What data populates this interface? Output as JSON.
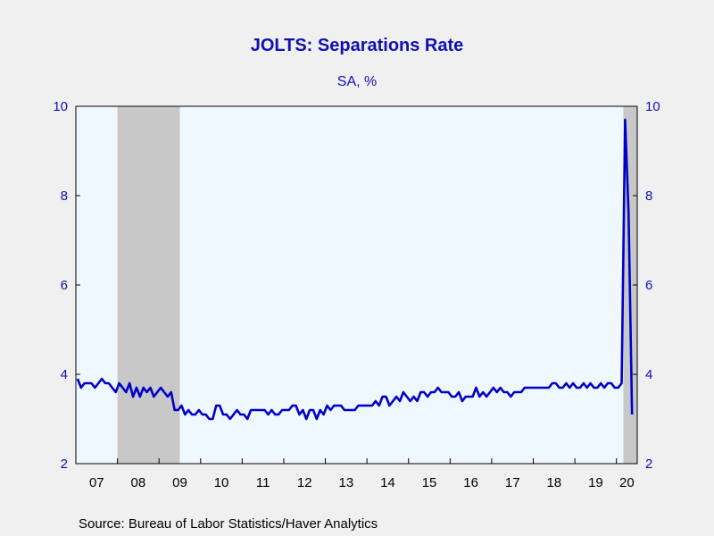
{
  "chart_data": {
    "type": "line",
    "title": "JOLTS: Separations Rate",
    "subtitle": "SA, %",
    "source": "Source:  Bureau of Labor Statistics/Haver Analytics",
    "ylim": [
      2,
      10
    ],
    "yticks": [
      2,
      4,
      6,
      8,
      10
    ],
    "x_start": "2007-01",
    "x_end": "2020-06",
    "x_tick_labels": [
      "07",
      "08",
      "09",
      "10",
      "11",
      "12",
      "13",
      "14",
      "15",
      "16",
      "17",
      "18",
      "19",
      "20"
    ],
    "recessions": [
      [
        "2008-01",
        "2009-06"
      ],
      [
        "2020-03",
        "2020-06"
      ]
    ],
    "colors": {
      "line": "#0000c8",
      "text": "#1010b0",
      "plot_bg": "#f0f8ff",
      "recession": "#c8c8c8",
      "page_bg": "#f0f0f0"
    },
    "grid": false,
    "series": [
      {
        "start": "2007-01",
        "values": [
          3.9,
          3.7,
          3.8,
          3.8,
          3.8,
          3.7,
          3.8,
          3.9,
          3.8,
          3.8,
          3.7,
          3.6,
          3.8,
          3.7,
          3.6,
          3.8,
          3.5,
          3.7,
          3.5,
          3.7,
          3.6,
          3.7,
          3.5,
          3.6,
          3.7,
          3.6,
          3.5,
          3.6,
          3.2,
          3.2,
          3.3,
          3.1,
          3.2,
          3.1,
          3.1,
          3.2,
          3.1,
          3.1,
          3.0,
          3.0,
          3.3,
          3.3,
          3.1,
          3.1,
          3.0,
          3.1,
          3.2,
          3.1,
          3.1,
          3.0,
          3.2,
          3.2,
          3.2,
          3.2,
          3.2,
          3.1,
          3.2,
          3.1,
          3.1,
          3.2,
          3.2,
          3.2,
          3.3,
          3.3,
          3.1,
          3.2,
          3.0,
          3.2,
          3.2,
          3.0,
          3.2,
          3.1,
          3.3,
          3.2,
          3.3,
          3.3,
          3.3,
          3.2,
          3.2,
          3.2,
          3.2,
          3.3,
          3.3,
          3.3,
          3.3,
          3.3,
          3.4,
          3.3,
          3.5,
          3.5,
          3.3,
          3.4,
          3.5,
          3.4,
          3.6,
          3.5,
          3.4,
          3.5,
          3.4,
          3.6,
          3.6,
          3.5,
          3.6,
          3.6,
          3.7,
          3.6,
          3.6,
          3.6,
          3.5,
          3.5,
          3.6,
          3.4,
          3.5,
          3.5,
          3.5,
          3.7,
          3.5,
          3.6,
          3.5,
          3.6,
          3.7,
          3.6,
          3.7,
          3.6,
          3.6,
          3.5,
          3.6,
          3.6,
          3.6,
          3.7,
          3.7,
          3.7,
          3.7,
          3.7,
          3.7,
          3.7,
          3.7,
          3.8,
          3.8,
          3.7,
          3.7,
          3.8,
          3.7,
          3.8,
          3.7,
          3.7,
          3.8,
          3.7,
          3.8,
          3.7,
          3.7,
          3.8,
          3.7,
          3.8,
          3.8,
          3.7,
          3.7,
          3.8,
          9.7,
          7.6,
          3.1
        ]
      }
    ]
  }
}
